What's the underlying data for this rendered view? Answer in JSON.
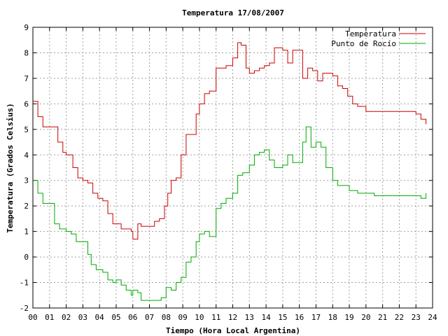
{
  "chart_data": {
    "type": "line",
    "title": "Temperatura 17/08/2007",
    "xlabel": "Tiempo (Hora Local Argentina)",
    "ylabel": "Temperatura (Grados Celsius)",
    "xlim": [
      0,
      24
    ],
    "ylim": [
      -2,
      9
    ],
    "x_ticks": [
      "00",
      "01",
      "02",
      "03",
      "04",
      "05",
      "06",
      "07",
      "08",
      "09",
      "10",
      "11",
      "12",
      "13",
      "14",
      "15",
      "16",
      "17",
      "18",
      "19",
      "20",
      "21",
      "22",
      "23",
      "24"
    ],
    "y_ticks": [
      "-2",
      "-1",
      "0",
      "1",
      "2",
      "3",
      "4",
      "5",
      "6",
      "7",
      "8",
      "9"
    ],
    "grid": true,
    "legend_position": "top-right",
    "series": [
      {
        "name": "Temperatura",
        "color": "#cc0000",
        "x": [
          0,
          0.3,
          0.6,
          1.0,
          1.5,
          1.8,
          2.0,
          2.4,
          2.7,
          3.0,
          3.3,
          3.6,
          3.9,
          4.2,
          4.5,
          4.8,
          5.0,
          5.3,
          5.7,
          5.9,
          6.0,
          6.3,
          6.5,
          7.0,
          7.3,
          7.6,
          7.9,
          8.1,
          8.3,
          8.6,
          8.9,
          9.2,
          9.5,
          9.8,
          10.0,
          10.3,
          10.6,
          11.0,
          11.3,
          11.6,
          12.0,
          12.3,
          12.5,
          12.8,
          13.0,
          13.3,
          13.6,
          13.9,
          14.2,
          14.5,
          14.8,
          15.0,
          15.3,
          15.6,
          15.9,
          16.2,
          16.5,
          16.8,
          17.1,
          17.4,
          17.7,
          18.0,
          18.3,
          18.6,
          18.9,
          19.2,
          19.5,
          20.0,
          20.5,
          21.0,
          21.5,
          22.0,
          22.5,
          23.0,
          23.3,
          23.6
        ],
        "y": [
          6.1,
          5.5,
          5.1,
          5.1,
          4.5,
          4.1,
          4.0,
          3.5,
          3.1,
          3.0,
          2.9,
          2.5,
          2.3,
          2.2,
          1.7,
          1.3,
          1.3,
          1.1,
          1.1,
          1.0,
          0.7,
          1.3,
          1.2,
          1.2,
          1.4,
          1.5,
          2.0,
          2.5,
          3.0,
          3.1,
          4.0,
          4.8,
          4.8,
          5.6,
          6.0,
          6.4,
          6.5,
          7.4,
          7.4,
          7.5,
          7.8,
          8.4,
          8.3,
          7.4,
          7.2,
          7.3,
          7.4,
          7.5,
          7.6,
          8.2,
          8.2,
          8.1,
          7.6,
          8.1,
          8.1,
          7.0,
          7.4,
          7.3,
          6.9,
          7.2,
          7.2,
          7.1,
          6.7,
          6.6,
          6.3,
          6.0,
          5.9,
          5.7,
          5.7,
          5.7,
          5.7,
          5.7,
          5.7,
          5.6,
          5.4,
          5.2
        ]
      },
      {
        "name": "Punto de Rocío",
        "color": "#00aa00",
        "x": [
          0,
          0.3,
          0.6,
          1.0,
          1.3,
          1.6,
          2.0,
          2.3,
          2.6,
          3.0,
          3.3,
          3.5,
          3.8,
          4.2,
          4.5,
          4.8,
          5.0,
          5.3,
          5.6,
          5.9,
          6.0,
          6.3,
          6.5,
          7.0,
          7.4,
          7.7,
          8.0,
          8.3,
          8.6,
          8.9,
          9.2,
          9.5,
          9.8,
          10.0,
          10.3,
          10.6,
          11.0,
          11.3,
          11.6,
          12.0,
          12.3,
          12.6,
          13.0,
          13.3,
          13.6,
          13.9,
          14.2,
          14.5,
          14.8,
          15.0,
          15.3,
          15.6,
          16.0,
          16.2,
          16.4,
          16.7,
          17.0,
          17.3,
          17.6,
          18.0,
          18.3,
          18.6,
          19.0,
          19.5,
          20.0,
          20.5,
          21.0,
          21.5,
          22.0,
          22.5,
          23.0,
          23.3,
          23.6
        ],
        "y": [
          3.0,
          2.5,
          2.1,
          2.1,
          1.3,
          1.1,
          1.0,
          0.9,
          0.6,
          0.6,
          0.1,
          -0.3,
          -0.5,
          -0.6,
          -0.9,
          -1.0,
          -0.9,
          -1.1,
          -1.3,
          -1.5,
          -1.3,
          -1.4,
          -1.7,
          -1.7,
          -1.7,
          -1.6,
          -1.2,
          -1.3,
          -1.0,
          -0.8,
          -0.2,
          0.0,
          0.6,
          0.9,
          1.0,
          0.8,
          1.9,
          2.1,
          2.3,
          2.5,
          3.2,
          3.3,
          3.6,
          4.0,
          4.1,
          4.2,
          3.8,
          3.5,
          3.5,
          3.6,
          4.0,
          3.7,
          3.7,
          4.5,
          5.1,
          4.3,
          4.5,
          4.3,
          3.5,
          3.0,
          2.8,
          2.8,
          2.6,
          2.5,
          2.5,
          2.4,
          2.4,
          2.4,
          2.4,
          2.4,
          2.4,
          2.3,
          2.5
        ]
      }
    ]
  }
}
